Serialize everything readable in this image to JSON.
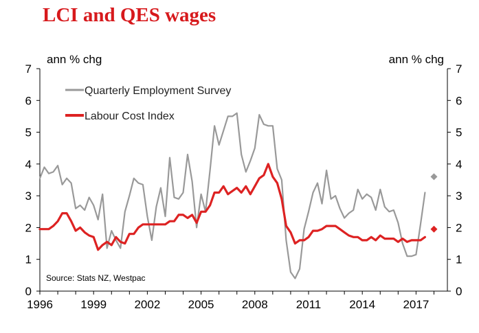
{
  "chart_data": {
    "type": "line",
    "title": "LCI and QES wages",
    "ylabel_left": "ann % chg",
    "ylabel_right": "ann % chg",
    "ylim": [
      0,
      7
    ],
    "xlim": [
      1996,
      2018.75
    ],
    "yticks": [
      "0",
      "1",
      "2",
      "3",
      "4",
      "5",
      "6",
      "7"
    ],
    "xticks": [
      "1996",
      "1999",
      "2002",
      "2005",
      "2008",
      "2011",
      "2014",
      "2017"
    ],
    "source": "Source: Stats NZ, Westpac",
    "legend_position": "top-left",
    "series": [
      {
        "name": "Quarterly Employment Survey",
        "color": "#999999",
        "x": [
          1996.0,
          1996.25,
          1996.5,
          1996.75,
          1997.0,
          1997.25,
          1997.5,
          1997.75,
          1998.0,
          1998.25,
          1998.5,
          1998.75,
          1999.0,
          1999.25,
          1999.5,
          1999.75,
          2000.0,
          2000.25,
          2000.5,
          2000.75,
          2001.0,
          2001.25,
          2001.5,
          2001.75,
          2002.0,
          2002.25,
          2002.5,
          2002.75,
          2003.0,
          2003.25,
          2003.5,
          2003.75,
          2004.0,
          2004.25,
          2004.5,
          2004.75,
          2005.0,
          2005.25,
          2005.5,
          2005.75,
          2006.0,
          2006.25,
          2006.5,
          2006.75,
          2007.0,
          2007.25,
          2007.5,
          2007.75,
          2008.0,
          2008.25,
          2008.5,
          2008.75,
          2009.0,
          2009.25,
          2009.5,
          2009.75,
          2010.0,
          2010.25,
          2010.5,
          2010.75,
          2011.0,
          2011.25,
          2011.5,
          2011.75,
          2012.0,
          2012.25,
          2012.5,
          2012.75,
          2013.0,
          2013.25,
          2013.5,
          2013.75,
          2014.0,
          2014.25,
          2014.5,
          2014.75,
          2015.0,
          2015.25,
          2015.5,
          2015.75,
          2016.0,
          2016.25,
          2016.5,
          2016.75,
          2017.0,
          2017.25,
          2017.5
        ],
        "values": [
          3.55,
          3.9,
          3.7,
          3.75,
          3.95,
          3.35,
          3.55,
          3.4,
          2.6,
          2.7,
          2.55,
          2.95,
          2.7,
          2.25,
          3.05,
          1.35,
          1.9,
          1.6,
          1.35,
          2.5,
          3.0,
          3.55,
          3.4,
          3.35,
          2.35,
          1.6,
          2.65,
          3.25,
          2.35,
          4.2,
          2.95,
          2.9,
          3.1,
          4.3,
          3.45,
          2.0,
          3.05,
          2.5,
          3.8,
          5.2,
          4.6,
          5.05,
          5.5,
          5.5,
          5.6,
          4.3,
          3.75,
          4.1,
          4.5,
          5.55,
          5.25,
          5.2,
          5.2,
          3.85,
          3.5,
          1.6,
          0.6,
          0.4,
          0.7,
          1.95,
          2.5,
          3.1,
          3.4,
          2.75,
          3.8,
          2.9,
          3.0,
          2.6,
          2.3,
          2.45,
          2.55,
          3.2,
          2.9,
          3.05,
          2.95,
          2.55,
          3.2,
          2.65,
          2.5,
          2.55,
          2.15,
          1.5,
          1.1,
          1.1,
          1.15,
          2.1,
          3.1
        ],
        "last_marker": {
          "x": 2018.0,
          "value": 3.6,
          "shape": "diamond"
        }
      },
      {
        "name": "Labour Cost Index",
        "color": "#dd2222",
        "x": [
          1996.0,
          1996.25,
          1996.5,
          1996.75,
          1997.0,
          1997.25,
          1997.5,
          1997.75,
          1998.0,
          1998.25,
          1998.5,
          1998.75,
          1999.0,
          1999.25,
          1999.5,
          1999.75,
          2000.0,
          2000.25,
          2000.5,
          2000.75,
          2001.0,
          2001.25,
          2001.5,
          2001.75,
          2002.0,
          2002.25,
          2002.5,
          2002.75,
          2003.0,
          2003.25,
          2003.5,
          2003.75,
          2004.0,
          2004.25,
          2004.5,
          2004.75,
          2005.0,
          2005.25,
          2005.5,
          2005.75,
          2006.0,
          2006.25,
          2006.5,
          2006.75,
          2007.0,
          2007.25,
          2007.5,
          2007.75,
          2008.0,
          2008.25,
          2008.5,
          2008.75,
          2009.0,
          2009.25,
          2009.5,
          2009.75,
          2010.0,
          2010.25,
          2010.5,
          2010.75,
          2011.0,
          2011.25,
          2011.5,
          2011.75,
          2012.0,
          2012.25,
          2012.5,
          2012.75,
          2013.0,
          2013.25,
          2013.5,
          2013.75,
          2014.0,
          2014.25,
          2014.5,
          2014.75,
          2015.0,
          2015.25,
          2015.5,
          2015.75,
          2016.0,
          2016.25,
          2016.5,
          2016.75,
          2017.0,
          2017.25,
          2017.5
        ],
        "values": [
          1.95,
          1.95,
          1.95,
          2.05,
          2.2,
          2.45,
          2.45,
          2.2,
          1.9,
          2.0,
          1.85,
          1.75,
          1.7,
          1.3,
          1.45,
          1.55,
          1.45,
          1.7,
          1.55,
          1.5,
          1.8,
          1.8,
          2.0,
          2.1,
          2.1,
          2.1,
          2.1,
          2.1,
          2.1,
          2.2,
          2.2,
          2.4,
          2.4,
          2.3,
          2.4,
          2.15,
          2.5,
          2.5,
          2.7,
          3.1,
          3.1,
          3.3,
          3.05,
          3.15,
          3.25,
          3.1,
          3.3,
          3.05,
          3.3,
          3.55,
          3.65,
          4.0,
          3.6,
          3.4,
          2.9,
          2.05,
          1.85,
          1.5,
          1.6,
          1.6,
          1.7,
          1.9,
          1.9,
          1.95,
          2.05,
          2.05,
          2.05,
          1.95,
          1.85,
          1.75,
          1.7,
          1.7,
          1.6,
          1.6,
          1.7,
          1.6,
          1.75,
          1.65,
          1.65,
          1.65,
          1.55,
          1.65,
          1.55,
          1.6,
          1.6,
          1.6,
          1.7
        ],
        "last_marker": {
          "x": 2018.0,
          "value": 1.95,
          "shape": "diamond"
        }
      }
    ]
  }
}
